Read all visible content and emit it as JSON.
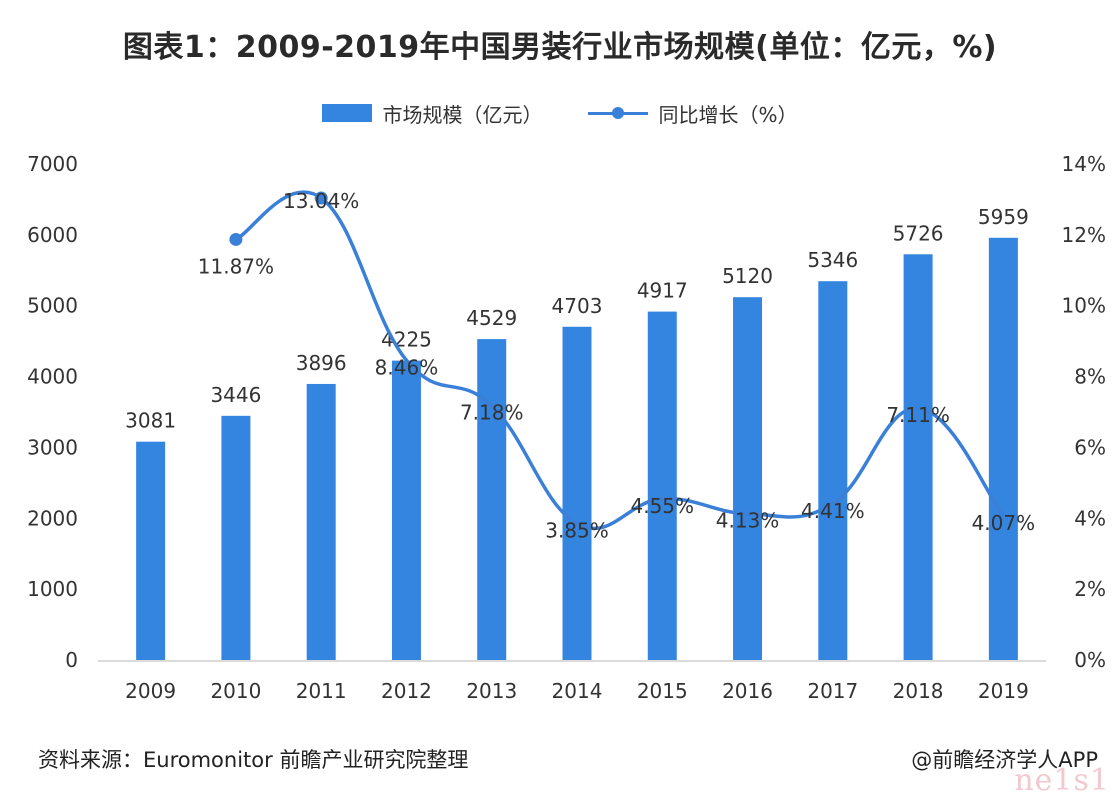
{
  "title": "图表1：2009-2019年中国男装行业市场规模(单位：亿元，%)",
  "legend": {
    "bar_label": "市场规模（亿元）",
    "line_label": "同比增长（%）"
  },
  "footer": {
    "source": "资料来源：Euromonitor  前瞻产业研究院整理",
    "credit": "@前瞻经济学人APP"
  },
  "watermark": "ne1s1",
  "colors": {
    "bar": "#3385e0",
    "line": "#3a80d8",
    "axis": "#cfcfcf"
  },
  "chart_data": {
    "type": "bar",
    "categories": [
      "2009",
      "2010",
      "2011",
      "2012",
      "2013",
      "2014",
      "2015",
      "2016",
      "2017",
      "2018",
      "2019"
    ],
    "series": [
      {
        "name": "市场规模（亿元）",
        "type": "bar",
        "axis": "left",
        "values": [
          3081,
          3446,
          3896,
          4225,
          4529,
          4703,
          4917,
          5120,
          5346,
          5726,
          5959
        ]
      },
      {
        "name": "同比增长（%）",
        "type": "line",
        "axis": "right",
        "values": [
          null,
          11.87,
          13.04,
          8.46,
          7.18,
          3.85,
          4.55,
          4.13,
          4.41,
          7.11,
          4.07
        ],
        "labels": [
          "",
          "11.87%",
          "13.04%",
          "8.46%",
          "7.18%",
          "3.85%",
          "4.55%",
          "4.13%",
          "4.41%",
          "7.11%",
          "4.07%"
        ]
      }
    ],
    "ylim_left": [
      0,
      7000
    ],
    "ylim_right": [
      0,
      14
    ],
    "yticks_left": [
      "0",
      "1000",
      "2000",
      "3000",
      "4000",
      "5000",
      "6000",
      "7000"
    ],
    "yticks_right": [
      "0%",
      "2%",
      "4%",
      "6%",
      "8%",
      "10%",
      "12%",
      "14%"
    ],
    "xlabel": "",
    "ylabel": "",
    "grid": false,
    "legend_position": "top-center"
  }
}
